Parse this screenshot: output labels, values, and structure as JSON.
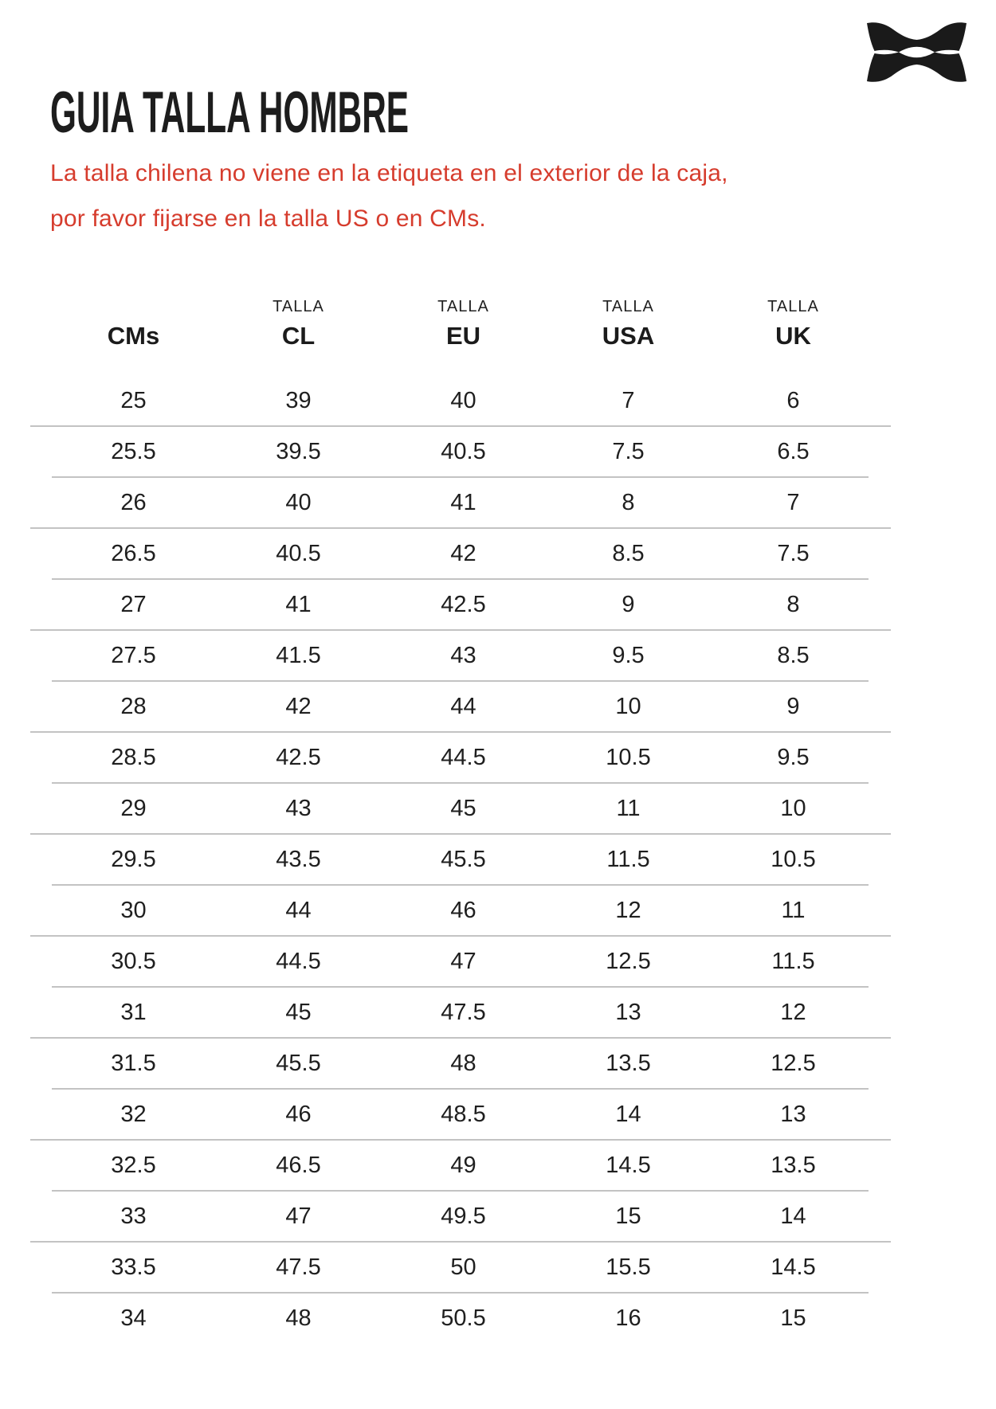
{
  "brand": {
    "logo_icon": "under-armour-logo",
    "logo_color": "#1a1a1a"
  },
  "page": {
    "title": "GUIA TALLA HOMBRE"
  },
  "notice": {
    "line1": "La talla chilena no viene en la etiqueta en el exterior de la caja,",
    "line2": "por favor fijarse en la talla US o en CMs.",
    "color": "#d63c2d"
  },
  "table": {
    "talla_label": "TALLA",
    "columns": [
      "CMs",
      "CL",
      "EU",
      "USA",
      "UK"
    ],
    "divider_color": "#c3c3c3",
    "rows": [
      [
        "25",
        "39",
        "40",
        "7",
        "6"
      ],
      [
        "25.5",
        "39.5",
        "40.5",
        "7.5",
        "6.5"
      ],
      [
        "26",
        "40",
        "41",
        "8",
        "7"
      ],
      [
        "26.5",
        "40.5",
        "42",
        "8.5",
        "7.5"
      ],
      [
        "27",
        "41",
        "42.5",
        "9",
        "8"
      ],
      [
        "27.5",
        "41.5",
        "43",
        "9.5",
        "8.5"
      ],
      [
        "28",
        "42",
        "44",
        "10",
        "9"
      ],
      [
        "28.5",
        "42.5",
        "44.5",
        "10.5",
        "9.5"
      ],
      [
        "29",
        "43",
        "45",
        "11",
        "10"
      ],
      [
        "29.5",
        "43.5",
        "45.5",
        "11.5",
        "10.5"
      ],
      [
        "30",
        "44",
        "46",
        "12",
        "11"
      ],
      [
        "30.5",
        "44.5",
        "47",
        "12.5",
        "11.5"
      ],
      [
        "31",
        "45",
        "47.5",
        "13",
        "12"
      ],
      [
        "31.5",
        "45.5",
        "48",
        "13.5",
        "12.5"
      ],
      [
        "32",
        "46",
        "48.5",
        "14",
        "13"
      ],
      [
        "32.5",
        "46.5",
        "49",
        "14.5",
        "13.5"
      ],
      [
        "33",
        "47",
        "49.5",
        "15",
        "14"
      ],
      [
        "33.5",
        "47.5",
        "50",
        "15.5",
        "14.5"
      ],
      [
        "34",
        "48",
        "50.5",
        "16",
        "15"
      ]
    ]
  }
}
